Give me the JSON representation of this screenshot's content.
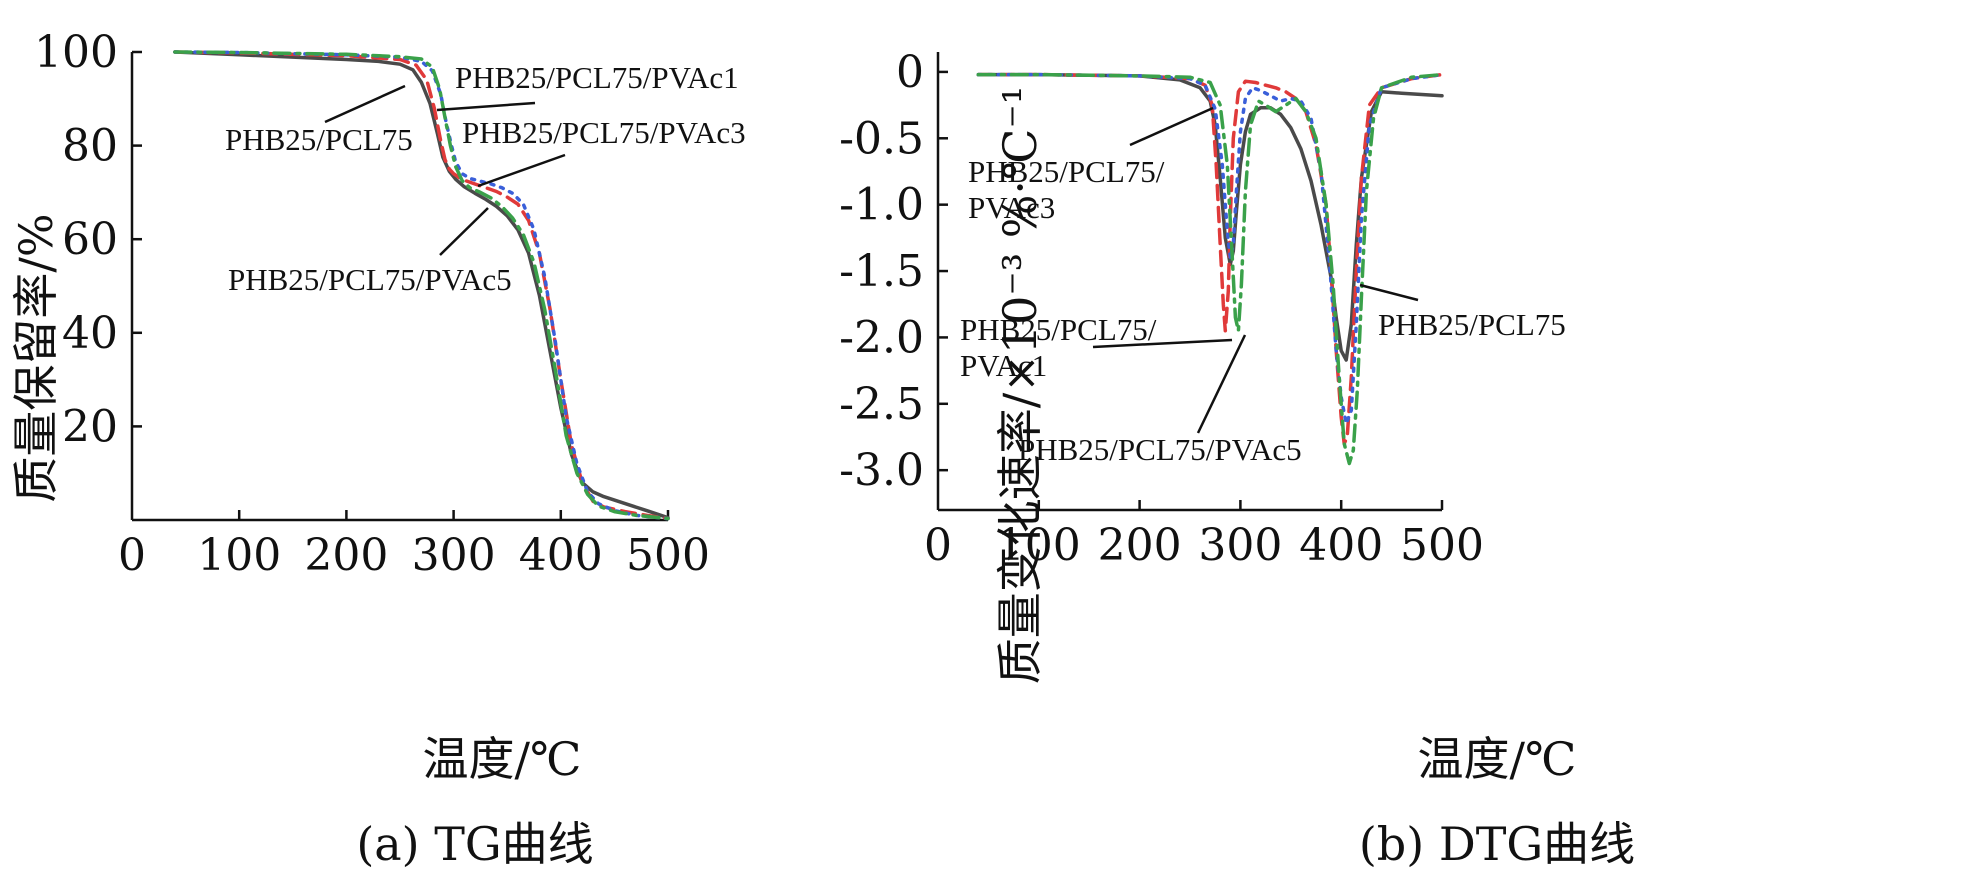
{
  "series_styles": {
    "PHB25/PCL75": {
      "color": "#4a4a4a",
      "dash": ""
    },
    "PHB25/PCL75/PVAc1": {
      "color": "#e03a3a",
      "dash": "14 8"
    },
    "PHB25/PCL75/PVAc3": {
      "color": "#3a5fd9",
      "dash": "3 7"
    },
    "PHB25/PCL75/PVAc5": {
      "color": "#3aa14a",
      "dash": "16 7 3 7"
    }
  },
  "chart_data": [
    {
      "type": "line",
      "caption": "(a) TG曲线",
      "xlabel": "温度/℃",
      "ylabel": "质量保留率/%",
      "xlim": [
        0,
        500
      ],
      "ylim": [
        0,
        100
      ],
      "xticks": [
        "0",
        "100",
        "200",
        "300",
        "400",
        "500"
      ],
      "yticks": [
        "20",
        "40",
        "60",
        "80",
        "100"
      ],
      "series": [
        {
          "name": "PHB25/PCL75",
          "x": [
            40,
            100,
            150,
            200,
            230,
            250,
            262,
            270,
            278,
            285,
            290,
            296,
            302,
            310,
            320,
            330,
            340,
            350,
            360,
            370,
            380,
            390,
            400,
            410,
            420,
            430,
            440,
            460,
            480,
            500
          ],
          "y": [
            100,
            99.4,
            98.9,
            98.4,
            98,
            97.4,
            96.2,
            93.5,
            89,
            82.5,
            77.5,
            74.5,
            72.8,
            71.2,
            69.8,
            68.5,
            67,
            65,
            62,
            57,
            48,
            36,
            24,
            14,
            8,
            6,
            5,
            3.5,
            2,
            0.5
          ]
        },
        {
          "name": "PHB25/PCL75/PVAc1",
          "x": [
            40,
            100,
            200,
            250,
            265,
            275,
            282,
            288,
            292,
            296,
            300,
            305,
            310,
            320,
            330,
            340,
            350,
            360,
            370,
            380,
            390,
            400,
            410,
            420,
            430,
            440,
            460,
            480,
            500
          ],
          "y": [
            100,
            99.8,
            99.2,
            98.4,
            97.2,
            94,
            88,
            81,
            77,
            75,
            74,
            73.2,
            72.6,
            71.8,
            71,
            70.2,
            69,
            67.5,
            64,
            57,
            45,
            30,
            16,
            8,
            4,
            2.8,
            1.8,
            1,
            0.3
          ]
        },
        {
          "name": "PHB25/PCL75/PVAc3",
          "x": [
            40,
            100,
            200,
            250,
            270,
            280,
            288,
            293,
            298,
            302,
            308,
            315,
            325,
            335,
            345,
            355,
            365,
            375,
            385,
            395,
            405,
            415,
            425,
            435,
            450,
            470,
            500
          ],
          "y": [
            100,
            99.9,
            99.4,
            98.9,
            98,
            96,
            91,
            85,
            80,
            76.5,
            74,
            73,
            72.4,
            71.8,
            71,
            69.8,
            67.5,
            62,
            52,
            38,
            22,
            12,
            6,
            3.5,
            2,
            1,
            0.3
          ]
        },
        {
          "name": "PHB25/PCL75/PVAc5",
          "x": [
            40,
            100,
            200,
            250,
            270,
            280,
            287,
            292,
            297,
            302,
            308,
            315,
            325,
            335,
            345,
            355,
            365,
            375,
            385,
            395,
            405,
            415,
            425,
            435,
            450,
            470,
            500
          ],
          "y": [
            100,
            99.9,
            99.5,
            99,
            98.5,
            96.8,
            92,
            86,
            80,
            75.5,
            72.5,
            71,
            70,
            68.8,
            67,
            64.5,
            61,
            55,
            45,
            32,
            18,
            10,
            5.5,
            3,
            1.8,
            1,
            0.3
          ]
        }
      ],
      "annotations": [
        "PHB25/PCL75/PVAc1",
        "PHB25/PCL75",
        "PHB25/PCL75/PVAc3",
        "PHB25/PCL75/PVAc5"
      ]
    },
    {
      "type": "line",
      "caption": "(b) DTG曲线",
      "xlabel": "温度/℃",
      "ylabel": "质量变化速率/×10⁻³ %·℃⁻¹",
      "xlim": [
        0,
        500
      ],
      "ylim": [
        -3.3,
        0.15
      ],
      "xticks": [
        "0",
        "100",
        "200",
        "300",
        "400",
        "500"
      ],
      "yticks": [
        "0",
        "-0.5",
        "-1.0",
        "-1.5",
        "-2.0",
        "-2.5",
        "-3.0"
      ],
      "series": [
        {
          "name": "PHB25/PCL75",
          "x": [
            40,
            100,
            200,
            240,
            260,
            270,
            275,
            280,
            285,
            290,
            293,
            296,
            300,
            305,
            310,
            320,
            330,
            340,
            350,
            360,
            370,
            380,
            390,
            395,
            400,
            405,
            410,
            415,
            420,
            430,
            440,
            460,
            480,
            500
          ],
          "y": [
            -0.02,
            -0.02,
            -0.03,
            -0.06,
            -0.12,
            -0.22,
            -0.4,
            -0.8,
            -1.25,
            -1.45,
            -1.35,
            -1.05,
            -0.7,
            -0.45,
            -0.32,
            -0.27,
            -0.27,
            -0.32,
            -0.42,
            -0.58,
            -0.82,
            -1.15,
            -1.55,
            -1.85,
            -2.1,
            -2.17,
            -1.9,
            -1.3,
            -0.8,
            -0.3,
            -0.15,
            -0.16,
            -0.17,
            -0.18
          ]
        },
        {
          "name": "PHB25/PCL75/PVAc1",
          "x": [
            40,
            100,
            200,
            250,
            265,
            272,
            276,
            280,
            283,
            285,
            288,
            290,
            293,
            298,
            305,
            315,
            325,
            335,
            345,
            355,
            365,
            375,
            385,
            390,
            395,
            400,
            403,
            406,
            410,
            415,
            420,
            428,
            440,
            470,
            500
          ],
          "y": [
            -0.02,
            -0.02,
            -0.03,
            -0.05,
            -0.1,
            -0.25,
            -0.7,
            -1.3,
            -1.75,
            -1.95,
            -1.65,
            -1.1,
            -0.5,
            -0.15,
            -0.07,
            -0.08,
            -0.1,
            -0.12,
            -0.15,
            -0.2,
            -0.3,
            -0.55,
            -1.0,
            -1.5,
            -2.1,
            -2.6,
            -2.8,
            -2.75,
            -2.3,
            -1.5,
            -0.8,
            -0.25,
            -0.12,
            -0.05,
            -0.02
          ]
        },
        {
          "name": "PHB25/PCL75/PVAc3",
          "x": [
            40,
            100,
            200,
            250,
            265,
            275,
            282,
            287,
            290,
            293,
            296,
            300,
            305,
            312,
            320,
            330,
            340,
            350,
            360,
            370,
            380,
            388,
            395,
            400,
            405,
            410,
            415,
            420,
            428,
            440,
            470,
            500
          ],
          "y": [
            -0.02,
            -0.02,
            -0.03,
            -0.05,
            -0.1,
            -0.28,
            -0.7,
            -1.2,
            -1.4,
            -1.3,
            -0.9,
            -0.45,
            -0.2,
            -0.12,
            -0.14,
            -0.18,
            -0.22,
            -0.2,
            -0.22,
            -0.35,
            -0.75,
            -1.4,
            -2.1,
            -2.45,
            -2.65,
            -2.55,
            -1.9,
            -1.1,
            -0.4,
            -0.12,
            -0.05,
            -0.02
          ]
        },
        {
          "name": "PHB25/PCL75/PVAc5",
          "x": [
            40,
            100,
            200,
            250,
            270,
            280,
            287,
            292,
            295,
            298,
            301,
            305,
            310,
            318,
            325,
            335,
            345,
            355,
            365,
            375,
            385,
            392,
            398,
            403,
            408,
            412,
            416,
            420,
            425,
            432,
            440,
            470,
            500
          ],
          "y": [
            -0.02,
            -0.02,
            -0.03,
            -0.04,
            -0.08,
            -0.25,
            -0.7,
            -1.4,
            -1.85,
            -1.95,
            -1.6,
            -0.9,
            -0.4,
            -0.22,
            -0.25,
            -0.3,
            -0.25,
            -0.2,
            -0.3,
            -0.5,
            -1.0,
            -1.6,
            -2.3,
            -2.8,
            -2.95,
            -2.85,
            -2.4,
            -1.7,
            -0.9,
            -0.35,
            -0.12,
            -0.04,
            -0.02
          ]
        }
      ],
      "annotations": [
        "PHB25/PCL75/",
        "PVAc3",
        "PHB25/PCL75/",
        "PVAc1",
        "PHB25/PCL75/PVAc5",
        "PHB25/PCL75"
      ]
    }
  ]
}
